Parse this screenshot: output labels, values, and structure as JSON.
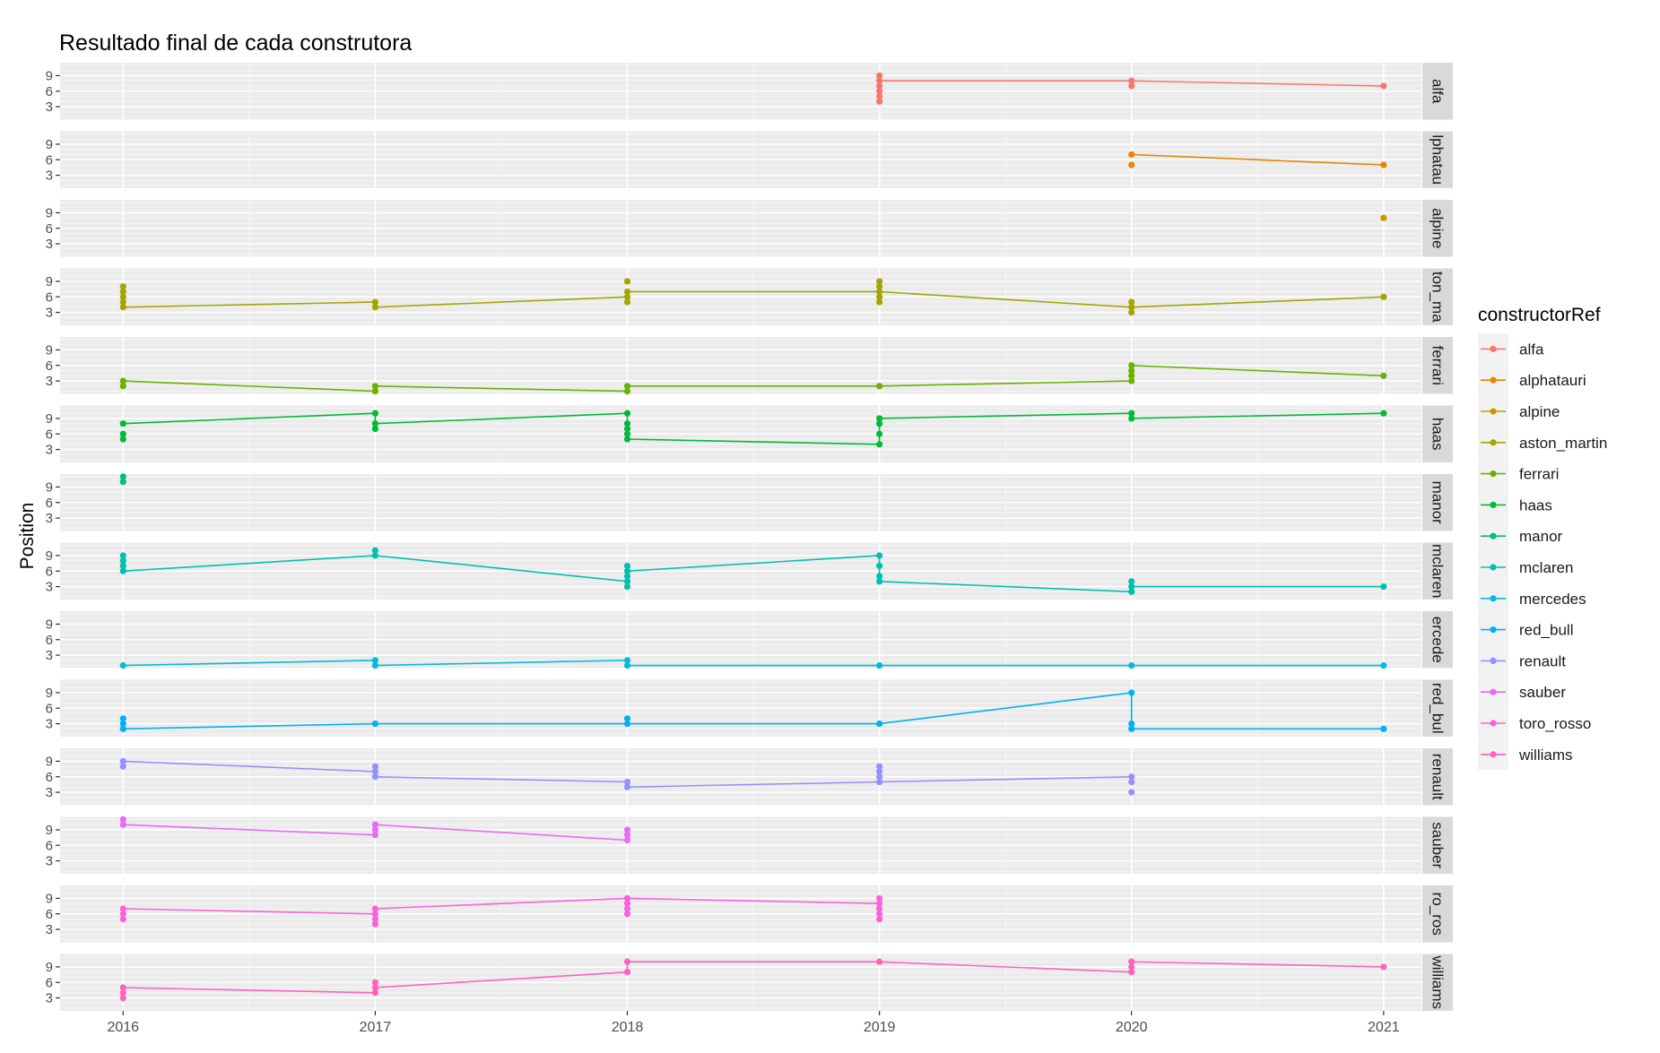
{
  "chart_data": {
    "type": "line",
    "title": "Resultado final de cada construtora",
    "xlabel": "",
    "ylabel": "Position",
    "x_ticks": [
      2016,
      2017,
      2018,
      2019,
      2020,
      2021
    ],
    "xlim": [
      2015.75,
      2021.15
    ],
    "y_ticks": [
      3,
      6,
      9
    ],
    "ylim": [
      0.5,
      11.5
    ],
    "grid": true,
    "legend": {
      "title": "constructorRef",
      "placement": "right"
    },
    "facets": [
      {
        "label": "alfa",
        "strip": "alfa",
        "color": "#F8766D",
        "points": [
          [
            2019,
            9
          ],
          [
            2019,
            8
          ],
          [
            2019,
            7
          ],
          [
            2019,
            6
          ],
          [
            2019,
            5
          ],
          [
            2019,
            4
          ],
          [
            2020,
            8
          ],
          [
            2020,
            7
          ],
          [
            2021,
            7
          ]
        ],
        "line": [
          [
            2019,
            8
          ],
          [
            2020,
            8
          ],
          [
            2020,
            7
          ],
          [
            2020,
            8
          ],
          [
            2021,
            7
          ]
        ]
      },
      {
        "label": "alphatauri",
        "strip": "lphatau",
        "color": "#E58700",
        "points": [
          [
            2020,
            7
          ],
          [
            2020,
            5
          ],
          [
            2021,
            5
          ]
        ],
        "line": [
          [
            2020,
            7
          ],
          [
            2021,
            5
          ]
        ]
      },
      {
        "label": "alpine",
        "strip": "alpine",
        "color": "#C99800",
        "points": [
          [
            2021,
            8
          ]
        ],
        "line": []
      },
      {
        "label": "aston_martin",
        "strip": "ton_ma",
        "color": "#A3A500",
        "points": [
          [
            2016,
            8
          ],
          [
            2016,
            7
          ],
          [
            2016,
            6
          ],
          [
            2016,
            5
          ],
          [
            2016,
            4
          ],
          [
            2017,
            5
          ],
          [
            2017,
            4
          ],
          [
            2018,
            9
          ],
          [
            2018,
            7
          ],
          [
            2018,
            6
          ],
          [
            2018,
            5
          ],
          [
            2019,
            9
          ],
          [
            2019,
            8
          ],
          [
            2019,
            7
          ],
          [
            2019,
            6
          ],
          [
            2019,
            5
          ],
          [
            2020,
            5
          ],
          [
            2020,
            4
          ],
          [
            2020,
            3
          ],
          [
            2021,
            6
          ]
        ],
        "line": [
          [
            2016,
            4
          ],
          [
            2017,
            5
          ],
          [
            2017,
            4
          ],
          [
            2018,
            6
          ],
          [
            2018,
            7
          ],
          [
            2019,
            7
          ],
          [
            2020,
            4
          ],
          [
            2021,
            6
          ]
        ]
      },
      {
        "label": "ferrari",
        "strip": "ferrari",
        "color": "#6BB100",
        "points": [
          [
            2016,
            3
          ],
          [
            2016,
            2
          ],
          [
            2017,
            2
          ],
          [
            2017,
            1
          ],
          [
            2018,
            2
          ],
          [
            2018,
            1
          ],
          [
            2019,
            2
          ],
          [
            2020,
            6
          ],
          [
            2020,
            5
          ],
          [
            2020,
            4
          ],
          [
            2020,
            3
          ],
          [
            2021,
            4
          ]
        ],
        "line": [
          [
            2016,
            3
          ],
          [
            2017,
            1
          ],
          [
            2017,
            2
          ],
          [
            2018,
            1
          ],
          [
            2018,
            2
          ],
          [
            2019,
            2
          ],
          [
            2020,
            3
          ],
          [
            2020,
            6
          ],
          [
            2021,
            4
          ]
        ]
      },
      {
        "label": "haas",
        "strip": "haas",
        "color": "#00BA38",
        "points": [
          [
            2016,
            8
          ],
          [
            2016,
            6
          ],
          [
            2016,
            5
          ],
          [
            2017,
            10
          ],
          [
            2017,
            8
          ],
          [
            2017,
            7
          ],
          [
            2018,
            10
          ],
          [
            2018,
            8
          ],
          [
            2018,
            7
          ],
          [
            2018,
            6
          ],
          [
            2018,
            5
          ],
          [
            2019,
            9
          ],
          [
            2019,
            8
          ],
          [
            2019,
            6
          ],
          [
            2019,
            4
          ],
          [
            2020,
            10
          ],
          [
            2020,
            9
          ],
          [
            2021,
            10
          ]
        ],
        "line": [
          [
            2016,
            8
          ],
          [
            2017,
            10
          ],
          [
            2017,
            8
          ],
          [
            2018,
            10
          ],
          [
            2018,
            5
          ],
          [
            2019,
            4
          ],
          [
            2019,
            9
          ],
          [
            2020,
            10
          ],
          [
            2020,
            9
          ],
          [
            2021,
            10
          ]
        ]
      },
      {
        "label": "manor",
        "strip": "manor",
        "color": "#00BF7D",
        "points": [
          [
            2016,
            11
          ],
          [
            2016,
            10
          ]
        ],
        "line": []
      },
      {
        "label": "mclaren",
        "strip": "mclaren",
        "color": "#00C0AF",
        "points": [
          [
            2016,
            9
          ],
          [
            2016,
            8
          ],
          [
            2016,
            7
          ],
          [
            2016,
            6
          ],
          [
            2017,
            10
          ],
          [
            2017,
            9
          ],
          [
            2018,
            7
          ],
          [
            2018,
            6
          ],
          [
            2018,
            5
          ],
          [
            2018,
            4
          ],
          [
            2018,
            3
          ],
          [
            2019,
            9
          ],
          [
            2019,
            7
          ],
          [
            2019,
            5
          ],
          [
            2019,
            4
          ],
          [
            2020,
            4
          ],
          [
            2020,
            3
          ],
          [
            2020,
            2
          ],
          [
            2021,
            3
          ]
        ],
        "line": [
          [
            2016,
            6
          ],
          [
            2017,
            9
          ],
          [
            2018,
            4
          ],
          [
            2018,
            6
          ],
          [
            2019,
            9
          ],
          [
            2019,
            4
          ],
          [
            2020,
            2
          ],
          [
            2020,
            3
          ],
          [
            2021,
            3
          ]
        ]
      },
      {
        "label": "mercedes",
        "strip": "ercede",
        "color": "#00BCD8",
        "points": [
          [
            2016,
            1
          ],
          [
            2017,
            2
          ],
          [
            2017,
            1
          ],
          [
            2018,
            2
          ],
          [
            2018,
            1
          ],
          [
            2019,
            1
          ],
          [
            2020,
            1
          ],
          [
            2021,
            1
          ]
        ],
        "line": [
          [
            2016,
            1
          ],
          [
            2017,
            2
          ],
          [
            2017,
            1
          ],
          [
            2018,
            2
          ],
          [
            2018,
            1
          ],
          [
            2019,
            1
          ],
          [
            2020,
            1
          ],
          [
            2021,
            1
          ]
        ]
      },
      {
        "label": "red_bull",
        "strip": "red_bul",
        "color": "#00B0F6",
        "points": [
          [
            2016,
            4
          ],
          [
            2016,
            3
          ],
          [
            2016,
            2
          ],
          [
            2017,
            3
          ],
          [
            2018,
            4
          ],
          [
            2018,
            3
          ],
          [
            2019,
            3
          ],
          [
            2020,
            9
          ],
          [
            2020,
            3
          ],
          [
            2020,
            2
          ],
          [
            2021,
            2
          ]
        ],
        "line": [
          [
            2016,
            2
          ],
          [
            2017,
            3
          ],
          [
            2018,
            3
          ],
          [
            2019,
            3
          ],
          [
            2020,
            9
          ],
          [
            2020,
            2
          ],
          [
            2021,
            2
          ]
        ]
      },
      {
        "label": "renault",
        "strip": "renault",
        "color": "#9590FF",
        "points": [
          [
            2016,
            9
          ],
          [
            2016,
            8
          ],
          [
            2017,
            8
          ],
          [
            2017,
            7
          ],
          [
            2017,
            6
          ],
          [
            2018,
            5
          ],
          [
            2018,
            4
          ],
          [
            2019,
            8
          ],
          [
            2019,
            7
          ],
          [
            2019,
            6
          ],
          [
            2019,
            5
          ],
          [
            2020,
            6
          ],
          [
            2020,
            5
          ],
          [
            2020,
            3
          ]
        ],
        "line": [
          [
            2016,
            9
          ],
          [
            2017,
            7
          ],
          [
            2017,
            6
          ],
          [
            2018,
            5
          ],
          [
            2018,
            4
          ],
          [
            2019,
            5
          ],
          [
            2020,
            6
          ]
        ]
      },
      {
        "label": "sauber",
        "strip": "sauber",
        "color": "#E76BF3",
        "points": [
          [
            2016,
            11
          ],
          [
            2016,
            10
          ],
          [
            2017,
            10
          ],
          [
            2017,
            9
          ],
          [
            2017,
            8
          ],
          [
            2018,
            9
          ],
          [
            2018,
            8
          ],
          [
            2018,
            7
          ]
        ],
        "line": [
          [
            2016,
            10
          ],
          [
            2017,
            8
          ],
          [
            2017,
            10
          ],
          [
            2018,
            7
          ]
        ]
      },
      {
        "label": "toro_rosso",
        "strip": "ro_ros",
        "color": "#FA62DB",
        "points": [
          [
            2016,
            7
          ],
          [
            2016,
            6
          ],
          [
            2016,
            5
          ],
          [
            2017,
            7
          ],
          [
            2017,
            6
          ],
          [
            2017,
            5
          ],
          [
            2017,
            4
          ],
          [
            2018,
            9
          ],
          [
            2018,
            8
          ],
          [
            2018,
            7
          ],
          [
            2018,
            6
          ],
          [
            2019,
            9
          ],
          [
            2019,
            8
          ],
          [
            2019,
            7
          ],
          [
            2019,
            6
          ],
          [
            2019,
            5
          ]
        ],
        "line": [
          [
            2016,
            7
          ],
          [
            2017,
            6
          ],
          [
            2017,
            7
          ],
          [
            2018,
            9
          ],
          [
            2019,
            8
          ]
        ]
      },
      {
        "label": "williams",
        "strip": "williams",
        "color": "#FF62BC",
        "points": [
          [
            2016,
            5
          ],
          [
            2016,
            4
          ],
          [
            2016,
            3
          ],
          [
            2017,
            6
          ],
          [
            2017,
            5
          ],
          [
            2017,
            4
          ],
          [
            2018,
            10
          ],
          [
            2018,
            8
          ],
          [
            2019,
            10
          ],
          [
            2020,
            10
          ],
          [
            2020,
            9
          ],
          [
            2020,
            8
          ],
          [
            2021,
            9
          ]
        ],
        "line": [
          [
            2016,
            5
          ],
          [
            2017,
            4
          ],
          [
            2017,
            5
          ],
          [
            2018,
            8
          ],
          [
            2018,
            10
          ],
          [
            2019,
            10
          ],
          [
            2020,
            8
          ],
          [
            2020,
            10
          ],
          [
            2021,
            9
          ]
        ]
      }
    ]
  }
}
